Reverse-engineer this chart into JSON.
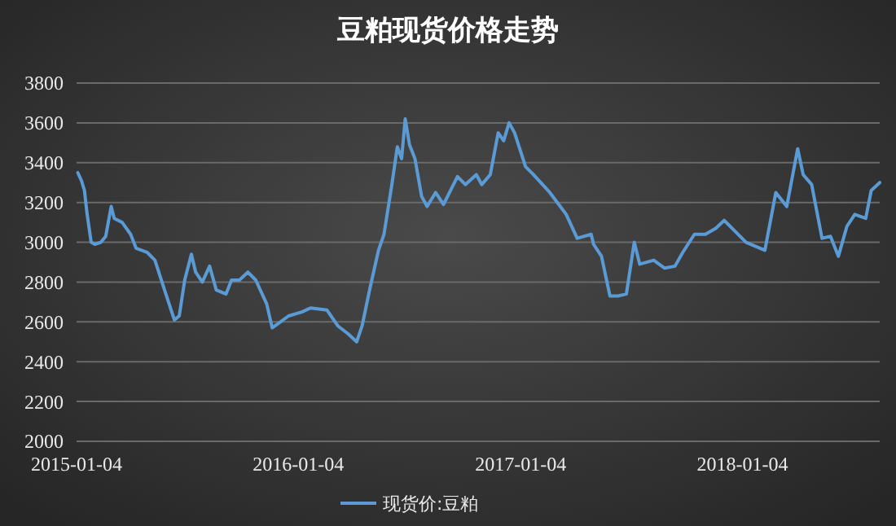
{
  "chart_data": {
    "type": "line",
    "title": "豆粕现货价格走势",
    "x": [
      "2015-01-06",
      "2015-01-12",
      "2015-01-17",
      "2015-01-21",
      "2015-01-28",
      "2015-02-03",
      "2015-02-13",
      "2015-02-21",
      "2015-03-02",
      "2015-03-07",
      "2015-03-20",
      "2015-04-03",
      "2015-04-12",
      "2015-04-30",
      "2015-05-13",
      "2015-05-31",
      "2015-06-14",
      "2015-06-22",
      "2015-07-01",
      "2015-07-12",
      "2015-07-19",
      "2015-07-30",
      "2015-08-11",
      "2015-08-22",
      "2015-09-07",
      "2015-09-16",
      "2015-09-29",
      "2015-10-13",
      "2015-10-26",
      "2015-11-13",
      "2015-11-22",
      "2015-12-01",
      "2015-12-19",
      "2016-01-10",
      "2016-01-24",
      "2016-02-20",
      "2016-03-09",
      "2016-03-26",
      "2016-04-09",
      "2016-04-18",
      "2016-05-01",
      "2016-05-15",
      "2016-05-24",
      "2016-06-06",
      "2016-06-15",
      "2016-06-22",
      "2016-06-28",
      "2016-07-05",
      "2016-07-14",
      "2016-07-25",
      "2016-08-03",
      "2016-08-17",
      "2016-08-30",
      "2016-09-22",
      "2016-10-05",
      "2016-10-23",
      "2016-11-01",
      "2016-11-15",
      "2016-11-28",
      "2016-12-07",
      "2016-12-16",
      "2016-12-25",
      "2017-01-12",
      "2017-01-25",
      "2017-02-21",
      "2017-03-20",
      "2017-04-07",
      "2017-04-30",
      "2017-05-04",
      "2017-05-17",
      "2017-05-31",
      "2017-06-13",
      "2017-06-27",
      "2017-07-10",
      "2017-07-19",
      "2017-08-11",
      "2017-08-29",
      "2017-09-15",
      "2017-09-28",
      "2017-10-17",
      "2017-11-04",
      "2017-11-21",
      "2017-12-05",
      "2017-12-18",
      "2018-01-10",
      "2018-02-10",
      "2018-02-28",
      "2018-03-18",
      "2018-04-05",
      "2018-04-14",
      "2018-04-28",
      "2018-05-15",
      "2018-05-29",
      "2018-06-11",
      "2018-06-25",
      "2018-07-08",
      "2018-07-26",
      "2018-08-04",
      "2018-08-18"
    ],
    "series": [
      {
        "name": "现货价:豆粕",
        "color": "#5b9bd5",
        "values": [
          3350,
          3310,
          3260,
          3150,
          3000,
          2990,
          3000,
          3030,
          3180,
          3120,
          3100,
          3040,
          2970,
          2950,
          2910,
          2740,
          2610,
          2630,
          2810,
          2940,
          2850,
          2800,
          2880,
          2760,
          2740,
          2810,
          2810,
          2850,
          2810,
          2690,
          2570,
          2590,
          2630,
          2650,
          2670,
          2660,
          2580,
          2540,
          2500,
          2580,
          2770,
          2960,
          3040,
          3290,
          3480,
          3420,
          3620,
          3490,
          3420,
          3230,
          3180,
          3250,
          3190,
          3330,
          3290,
          3340,
          3290,
          3340,
          3550,
          3510,
          3600,
          3550,
          3380,
          3340,
          3250,
          3140,
          3020,
          3040,
          2990,
          2930,
          2730,
          2730,
          2740,
          3000,
          2890,
          2910,
          2870,
          2880,
          2950,
          3040,
          3040,
          3070,
          3110,
          3070,
          3000,
          2960,
          3250,
          3180,
          3470,
          3340,
          3290,
          3020,
          3030,
          2930,
          3080,
          3140,
          3120,
          3260,
          3300
        ]
      }
    ],
    "xlim": [
      "2015-01-04",
      "2018-08-18"
    ],
    "xticks": [
      "2015-01-04",
      "2016-01-04",
      "2017-01-04",
      "2018-01-04"
    ],
    "ylim": [
      2000,
      3800
    ],
    "yticks": [
      2000,
      2200,
      2400,
      2600,
      2800,
      3000,
      3200,
      3400,
      3600,
      3800
    ],
    "grid": "y",
    "legend": "bottom",
    "marker": "none",
    "line_style": "solid"
  }
}
